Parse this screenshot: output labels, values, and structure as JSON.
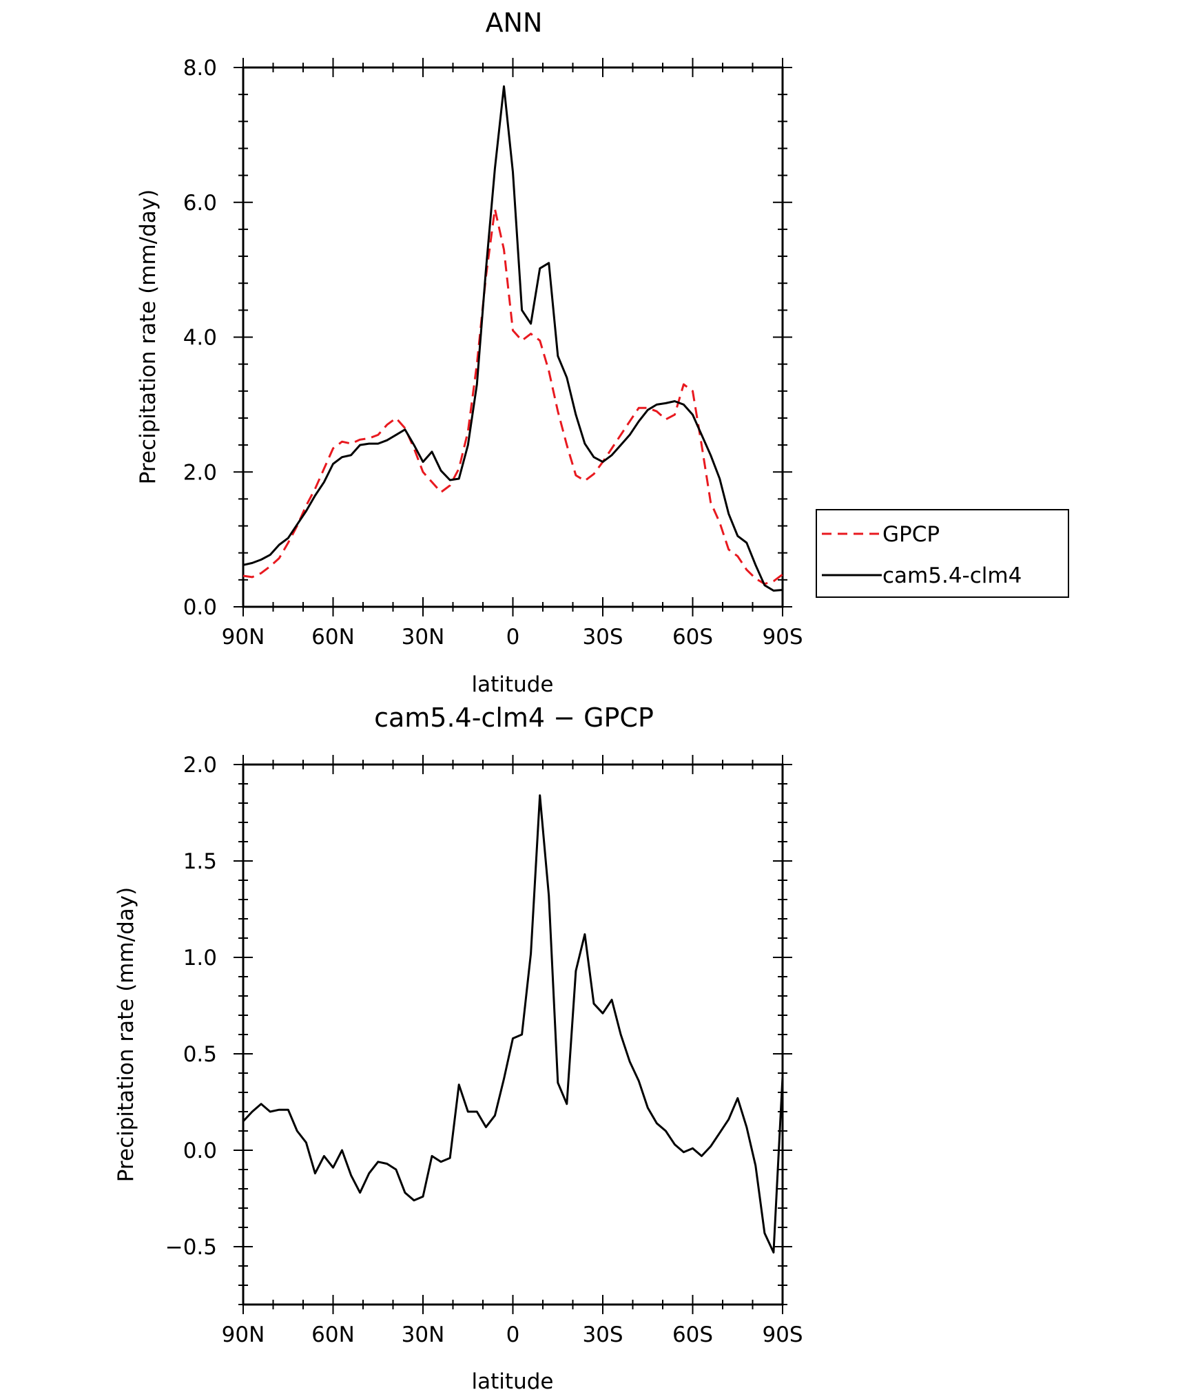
{
  "chart_data": [
    {
      "type": "line",
      "title": "ANN",
      "xlabel": "latitude",
      "ylabel": "Precipitation rate (mm/day)",
      "xlim": [
        -90,
        90
      ],
      "ylim": [
        0,
        8
      ],
      "x_tick_values": [
        -90,
        -60,
        -30,
        0,
        30,
        60,
        90
      ],
      "x_tick_labels": [
        "90N",
        "60N",
        "30N",
        "0",
        "30S",
        "60S",
        "90S"
      ],
      "y_tick_values": [
        0,
        2,
        4,
        6,
        8
      ],
      "y_tick_labels": [
        "0.0",
        "2.0",
        "4.0",
        "6.0",
        "8.0"
      ],
      "grid": false,
      "legend_position": "right",
      "series": [
        {
          "name": "GPCP",
          "color": "#e8191f",
          "dash": "dashed",
          "points": [
            [
              -90,
              0.46
            ],
            [
              -87,
              0.44
            ],
            [
              -84,
              0.5
            ],
            [
              -81,
              0.6
            ],
            [
              -78,
              0.72
            ],
            [
              -75,
              0.95
            ],
            [
              -72,
              1.2
            ],
            [
              -69,
              1.5
            ],
            [
              -66,
              1.75
            ],
            [
              -63,
              2.05
            ],
            [
              -60,
              2.35
            ],
            [
              -57,
              2.45
            ],
            [
              -54,
              2.42
            ],
            [
              -51,
              2.48
            ],
            [
              -48,
              2.5
            ],
            [
              -45,
              2.55
            ],
            [
              -42,
              2.7
            ],
            [
              -39,
              2.8
            ],
            [
              -36,
              2.65
            ],
            [
              -33,
              2.35
            ],
            [
              -30,
              2.0
            ],
            [
              -27,
              1.85
            ],
            [
              -24,
              1.7
            ],
            [
              -21,
              1.8
            ],
            [
              -18,
              2.05
            ],
            [
              -15,
              2.6
            ],
            [
              -12,
              3.6
            ],
            [
              -9,
              4.9
            ],
            [
              -6,
              5.9
            ],
            [
              -3,
              5.3
            ],
            [
              0,
              4.1
            ],
            [
              3,
              3.95
            ],
            [
              6,
              4.05
            ],
            [
              9,
              3.95
            ],
            [
              12,
              3.5
            ],
            [
              15,
              2.9
            ],
            [
              18,
              2.4
            ],
            [
              21,
              1.95
            ],
            [
              24,
              1.87
            ],
            [
              27,
              1.97
            ],
            [
              30,
              2.15
            ],
            [
              33,
              2.35
            ],
            [
              36,
              2.55
            ],
            [
              39,
              2.75
            ],
            [
              42,
              2.95
            ],
            [
              45,
              2.95
            ],
            [
              48,
              2.9
            ],
            [
              51,
              2.78
            ],
            [
              54,
              2.85
            ],
            [
              57,
              3.3
            ],
            [
              60,
              3.2
            ],
            [
              63,
              2.4
            ],
            [
              66,
              1.55
            ],
            [
              69,
              1.25
            ],
            [
              72,
              0.85
            ],
            [
              75,
              0.75
            ],
            [
              78,
              0.55
            ],
            [
              81,
              0.42
            ],
            [
              84,
              0.34
            ],
            [
              87,
              0.38
            ],
            [
              90,
              0.48
            ]
          ]
        },
        {
          "name": "cam5.4-clm4",
          "color": "#000000",
          "dash": "solid",
          "points": [
            [
              -90,
              0.62
            ],
            [
              -87,
              0.65
            ],
            [
              -84,
              0.7
            ],
            [
              -81,
              0.77
            ],
            [
              -78,
              0.92
            ],
            [
              -75,
              1.02
            ],
            [
              -72,
              1.22
            ],
            [
              -69,
              1.42
            ],
            [
              -66,
              1.65
            ],
            [
              -63,
              1.85
            ],
            [
              -60,
              2.12
            ],
            [
              -57,
              2.22
            ],
            [
              -54,
              2.25
            ],
            [
              -51,
              2.4
            ],
            [
              -48,
              2.42
            ],
            [
              -45,
              2.42
            ],
            [
              -42,
              2.47
            ],
            [
              -39,
              2.55
            ],
            [
              -36,
              2.63
            ],
            [
              -33,
              2.4
            ],
            [
              -30,
              2.15
            ],
            [
              -27,
              2.3
            ],
            [
              -24,
              2.02
            ],
            [
              -21,
              1.88
            ],
            [
              -18,
              1.9
            ],
            [
              -15,
              2.4
            ],
            [
              -12,
              3.3
            ],
            [
              -9,
              5.0
            ],
            [
              -6,
              6.5
            ],
            [
              -3,
              7.72
            ],
            [
              0,
              6.45
            ],
            [
              3,
              4.4
            ],
            [
              6,
              4.2
            ],
            [
              9,
              5.02
            ],
            [
              12,
              5.1
            ],
            [
              15,
              3.72
            ],
            [
              18,
              3.4
            ],
            [
              21,
              2.85
            ],
            [
              24,
              2.42
            ],
            [
              27,
              2.22
            ],
            [
              30,
              2.15
            ],
            [
              33,
              2.25
            ],
            [
              36,
              2.4
            ],
            [
              39,
              2.55
            ],
            [
              42,
              2.75
            ],
            [
              45,
              2.92
            ],
            [
              48,
              3.0
            ],
            [
              51,
              3.02
            ],
            [
              54,
              3.05
            ],
            [
              57,
              3.0
            ],
            [
              60,
              2.85
            ],
            [
              63,
              2.55
            ],
            [
              66,
              2.25
            ],
            [
              69,
              1.9
            ],
            [
              72,
              1.38
            ],
            [
              75,
              1.05
            ],
            [
              78,
              0.95
            ],
            [
              81,
              0.62
            ],
            [
              84,
              0.32
            ],
            [
              87,
              0.24
            ],
            [
              90,
              0.25
            ]
          ]
        }
      ]
    },
    {
      "type": "line",
      "title": "cam5.4-clm4 − GPCP",
      "xlabel": "latitude",
      "ylabel": "Precipitation rate (mm/day)",
      "xlim": [
        -90,
        90
      ],
      "ylim": [
        -0.8,
        2.0
      ],
      "x_tick_values": [
        -90,
        -60,
        -30,
        0,
        30,
        60,
        90
      ],
      "x_tick_labels": [
        "90N",
        "60N",
        "30N",
        "0",
        "30S",
        "60S",
        "90S"
      ],
      "y_tick_values": [
        -0.5,
        0,
        0.5,
        1.0,
        1.5,
        2.0
      ],
      "y_tick_labels": [
        "−0.5",
        "0.0",
        "0.5",
        "1.0",
        "1.5",
        "2.0"
      ],
      "grid": false,
      "series": [
        {
          "color": "#000000",
          "dash": "solid",
          "points": [
            [
              -90,
              0.15
            ],
            [
              -87,
              0.2
            ],
            [
              -84,
              0.24
            ],
            [
              -81,
              0.2
            ],
            [
              -78,
              0.21
            ],
            [
              -75,
              0.21
            ],
            [
              -72,
              0.1
            ],
            [
              -69,
              0.04
            ],
            [
              -66,
              -0.12
            ],
            [
              -63,
              -0.03
            ],
            [
              -60,
              -0.09
            ],
            [
              -57,
              0.0
            ],
            [
              -54,
              -0.13
            ],
            [
              -51,
              -0.22
            ],
            [
              -48,
              -0.12
            ],
            [
              -45,
              -0.06
            ],
            [
              -42,
              -0.07
            ],
            [
              -39,
              -0.1
            ],
            [
              -36,
              -0.22
            ],
            [
              -33,
              -0.26
            ],
            [
              -30,
              -0.24
            ],
            [
              -27,
              -0.03
            ],
            [
              -24,
              -0.06
            ],
            [
              -21,
              -0.04
            ],
            [
              -18,
              0.34
            ],
            [
              -15,
              0.2
            ],
            [
              -12,
              0.2
            ],
            [
              -9,
              0.12
            ],
            [
              -6,
              0.18
            ],
            [
              -3,
              0.37
            ],
            [
              0,
              0.58
            ],
            [
              3,
              0.6
            ],
            [
              6,
              1.02
            ],
            [
              9,
              1.84
            ],
            [
              12,
              1.32
            ],
            [
              15,
              0.35
            ],
            [
              18,
              0.24
            ],
            [
              21,
              0.93
            ],
            [
              24,
              1.12
            ],
            [
              27,
              0.76
            ],
            [
              30,
              0.71
            ],
            [
              33,
              0.78
            ],
            [
              36,
              0.6
            ],
            [
              39,
              0.46
            ],
            [
              42,
              0.36
            ],
            [
              45,
              0.22
            ],
            [
              48,
              0.14
            ],
            [
              51,
              0.1
            ],
            [
              54,
              0.03
            ],
            [
              57,
              -0.01
            ],
            [
              60,
              0.01
            ],
            [
              63,
              -0.03
            ],
            [
              66,
              0.02
            ],
            [
              69,
              0.09
            ],
            [
              72,
              0.16
            ],
            [
              75,
              0.27
            ],
            [
              78,
              0.12
            ],
            [
              81,
              -0.08
            ],
            [
              84,
              -0.43
            ],
            [
              87,
              -0.53
            ],
            [
              90,
              0.38
            ]
          ]
        }
      ]
    }
  ]
}
